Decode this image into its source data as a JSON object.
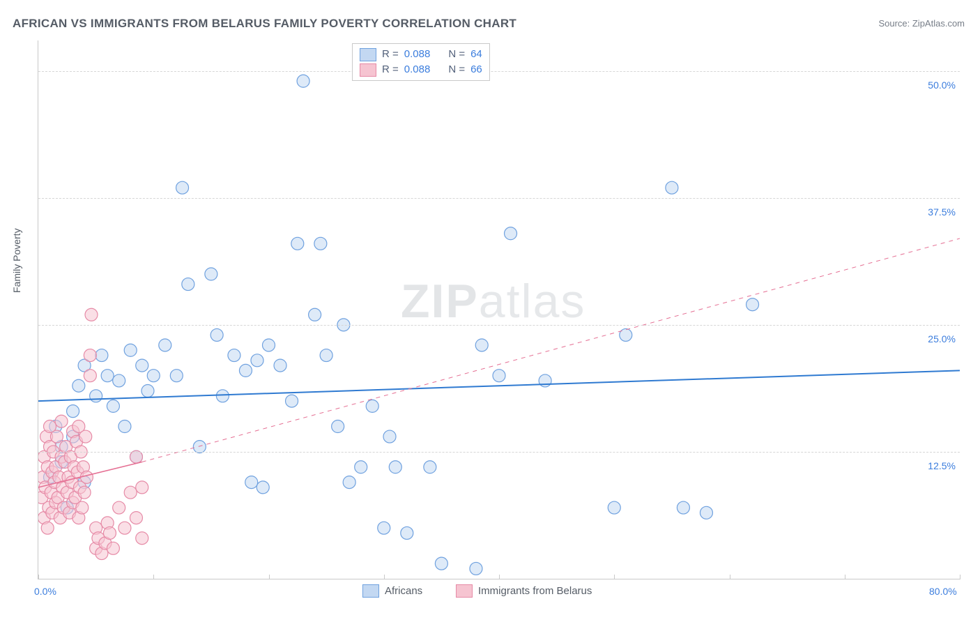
{
  "title": "AFRICAN VS IMMIGRANTS FROM BELARUS FAMILY POVERTY CORRELATION CHART",
  "source": "Source: ZipAtlas.com",
  "watermark_a": "ZIP",
  "watermark_b": "atlas",
  "y_axis_title": "Family Poverty",
  "chart": {
    "type": "scatter",
    "background_color": "#ffffff",
    "grid_color": "#d6d6d6",
    "axis_color": "#c9c9c9",
    "label_color": "#3b7ddd",
    "xlim": [
      0,
      80
    ],
    "ylim": [
      0,
      53
    ],
    "x_ticks": [
      0,
      10,
      20,
      30,
      40,
      50,
      60,
      70,
      80
    ],
    "x_tick_labels": {
      "0": "0.0%",
      "80": "80.0%"
    },
    "y_gridlines": [
      12.5,
      25.0,
      37.5,
      50.0
    ],
    "y_tick_labels": [
      "12.5%",
      "25.0%",
      "37.5%",
      "50.0%"
    ],
    "marker_radius": 9,
    "marker_stroke_width": 1.2,
    "series": [
      {
        "name": "Africans",
        "fill": "#c3d8f2",
        "stroke": "#6fa1df",
        "fill_opacity": 0.55,
        "trend": {
          "type": "solid",
          "color": "#2f7ad1",
          "width": 2,
          "x1": 0,
          "y1": 17.5,
          "x2": 80,
          "y2": 20.5,
          "dash_extend": false
        },
        "points": [
          [
            1,
            10
          ],
          [
            1.5,
            15
          ],
          [
            2,
            11.5
          ],
          [
            2,
            13
          ],
          [
            2.5,
            7
          ],
          [
            3,
            14
          ],
          [
            3,
            16.5
          ],
          [
            3.5,
            19
          ],
          [
            4,
            9.5
          ],
          [
            4,
            21
          ],
          [
            5,
            18
          ],
          [
            5.5,
            22
          ],
          [
            6,
            20
          ],
          [
            6.5,
            17
          ],
          [
            7,
            19.5
          ],
          [
            7.5,
            15
          ],
          [
            8,
            22.5
          ],
          [
            8.5,
            12
          ],
          [
            9,
            21
          ],
          [
            9.5,
            18.5
          ],
          [
            10,
            20
          ],
          [
            11,
            23
          ],
          [
            12,
            20
          ],
          [
            12.5,
            38.5
          ],
          [
            13,
            29
          ],
          [
            14,
            13
          ],
          [
            15,
            30
          ],
          [
            15.5,
            24
          ],
          [
            16,
            18
          ],
          [
            17,
            22
          ],
          [
            18,
            20.5
          ],
          [
            18.5,
            9.5
          ],
          [
            19,
            21.5
          ],
          [
            19.5,
            9
          ],
          [
            20,
            23
          ],
          [
            21,
            21
          ],
          [
            22,
            17.5
          ],
          [
            22.5,
            33
          ],
          [
            23,
            49
          ],
          [
            24,
            26
          ],
          [
            24.5,
            33
          ],
          [
            25,
            22
          ],
          [
            26,
            15
          ],
          [
            26.5,
            25
          ],
          [
            27,
            9.5
          ],
          [
            28,
            11
          ],
          [
            29,
            17
          ],
          [
            30,
            5
          ],
          [
            30.5,
            14
          ],
          [
            31,
            11
          ],
          [
            32,
            4.5
          ],
          [
            34,
            11
          ],
          [
            35,
            1.5
          ],
          [
            38,
            1
          ],
          [
            38.5,
            23
          ],
          [
            40,
            20
          ],
          [
            41,
            34
          ],
          [
            44,
            19.5
          ],
          [
            50,
            7
          ],
          [
            51,
            24
          ],
          [
            55,
            38.5
          ],
          [
            56,
            7
          ],
          [
            58,
            6.5
          ],
          [
            62,
            27
          ]
        ]
      },
      {
        "name": "Immigrants from Belarus",
        "fill": "#f6c4d1",
        "stroke": "#e68aa6",
        "fill_opacity": 0.55,
        "trend": {
          "type": "solid_then_dash",
          "color": "#e56f93",
          "width": 1.6,
          "x1": 0,
          "y1": 9.0,
          "x2_solid": 9,
          "y2_solid": 11.5,
          "x2": 80,
          "y2": 33.5
        },
        "points": [
          [
            0.3,
            8
          ],
          [
            0.4,
            10
          ],
          [
            0.5,
            6
          ],
          [
            0.5,
            12
          ],
          [
            0.6,
            9
          ],
          [
            0.7,
            14
          ],
          [
            0.8,
            5
          ],
          [
            0.8,
            11
          ],
          [
            0.9,
            7
          ],
          [
            1.0,
            13
          ],
          [
            1.0,
            15
          ],
          [
            1.1,
            8.5
          ],
          [
            1.2,
            6.5
          ],
          [
            1.2,
            10.5
          ],
          [
            1.3,
            12.5
          ],
          [
            1.4,
            9.5
          ],
          [
            1.5,
            7.5
          ],
          [
            1.5,
            11
          ],
          [
            1.6,
            14
          ],
          [
            1.7,
            8
          ],
          [
            1.8,
            10
          ],
          [
            1.9,
            6
          ],
          [
            2.0,
            12
          ],
          [
            2.0,
            15.5
          ],
          [
            2.1,
            9
          ],
          [
            2.2,
            7
          ],
          [
            2.3,
            11.5
          ],
          [
            2.4,
            13
          ],
          [
            2.5,
            8.5
          ],
          [
            2.6,
            10
          ],
          [
            2.7,
            6.5
          ],
          [
            2.8,
            12
          ],
          [
            2.9,
            9.5
          ],
          [
            3.0,
            14.5
          ],
          [
            3.0,
            7.5
          ],
          [
            3.1,
            11
          ],
          [
            3.2,
            8
          ],
          [
            3.3,
            13.5
          ],
          [
            3.4,
            10.5
          ],
          [
            3.5,
            6
          ],
          [
            3.5,
            15
          ],
          [
            3.6,
            9
          ],
          [
            3.7,
            12.5
          ],
          [
            3.8,
            7
          ],
          [
            3.9,
            11
          ],
          [
            4.0,
            8.5
          ],
          [
            4.1,
            14
          ],
          [
            4.2,
            10
          ],
          [
            4.5,
            20
          ],
          [
            4.5,
            22
          ],
          [
            4.6,
            26
          ],
          [
            5.0,
            3
          ],
          [
            5.0,
            5
          ],
          [
            5.2,
            4
          ],
          [
            5.5,
            2.5
          ],
          [
            5.8,
            3.5
          ],
          [
            6.0,
            5.5
          ],
          [
            6.2,
            4.5
          ],
          [
            6.5,
            3
          ],
          [
            7.0,
            7
          ],
          [
            7.5,
            5
          ],
          [
            8.0,
            8.5
          ],
          [
            8.5,
            6
          ],
          [
            8.5,
            12
          ],
          [
            9.0,
            4
          ],
          [
            9.0,
            9
          ]
        ]
      }
    ]
  },
  "legend_top": {
    "rows": [
      {
        "swatch_fill": "#c3d8f2",
        "swatch_stroke": "#6fa1df",
        "r_label": "R =",
        "r": "0.088",
        "n_label": "N =",
        "n": "64"
      },
      {
        "swatch_fill": "#f6c4d1",
        "swatch_stroke": "#e68aa6",
        "r_label": "R =",
        "r": "0.088",
        "n_label": "N =",
        "n": "66"
      }
    ]
  },
  "legend_bottom": [
    {
      "swatch_fill": "#c3d8f2",
      "swatch_stroke": "#6fa1df",
      "label": "Africans"
    },
    {
      "swatch_fill": "#f6c4d1",
      "swatch_stroke": "#e68aa6",
      "label": "Immigrants from Belarus"
    }
  ]
}
